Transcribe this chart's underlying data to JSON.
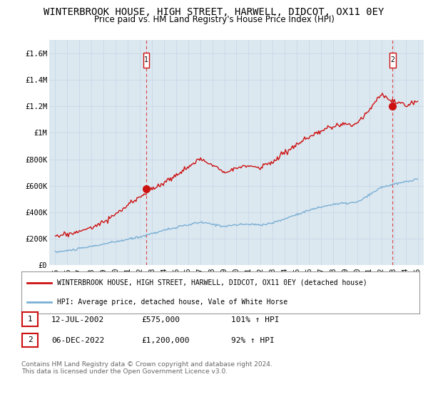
{
  "title": "WINTERBROOK HOUSE, HIGH STREET, HARWELL, DIDCOT, OX11 0EY",
  "subtitle": "Price paid vs. HM Land Registry's House Price Index (HPI)",
  "title_fontsize": 10,
  "subtitle_fontsize": 8.5,
  "ylim": [
    0,
    1700000
  ],
  "xlim_start": 1994.5,
  "xlim_end": 2025.5,
  "yticks": [
    0,
    200000,
    400000,
    600000,
    800000,
    1000000,
    1200000,
    1400000,
    1600000
  ],
  "ytick_labels": [
    "£0",
    "£200K",
    "£400K",
    "£600K",
    "£800K",
    "£1M",
    "£1.2M",
    "£1.4M",
    "£1.6M"
  ],
  "xticks": [
    1995,
    1996,
    1997,
    1998,
    1999,
    2000,
    2001,
    2002,
    2003,
    2004,
    2005,
    2006,
    2007,
    2008,
    2009,
    2010,
    2011,
    2012,
    2013,
    2014,
    2015,
    2016,
    2017,
    2018,
    2019,
    2020,
    2021,
    2022,
    2023,
    2024,
    2025
  ],
  "hpi_color": "#7aafd4",
  "price_color": "#cc1111",
  "dashed_color": "#dd4444",
  "grid_color": "#c8d8e8",
  "bg_plot_color": "#dce8f0",
  "sale1_x": 2002.54,
  "sale1_y": 575000,
  "sale2_x": 2022.92,
  "sale2_y": 1200000,
  "legend_label_red": "WINTERBROOK HOUSE, HIGH STREET, HARWELL, DIDCOT, OX11 0EY (detached house)",
  "legend_label_blue": "HPI: Average price, detached house, Vale of White Horse",
  "table_row1": [
    "1",
    "12-JUL-2002",
    "£575,000",
    "101% ↑ HPI"
  ],
  "table_row2": [
    "2",
    "06-DEC-2022",
    "£1,200,000",
    "92% ↑ HPI"
  ],
  "footnote": "Contains HM Land Registry data © Crown copyright and database right 2024.\nThis data is licensed under the Open Government Licence v3.0.",
  "bg_color": "#ffffff",
  "hpi_base": [
    100000,
    110000,
    125000,
    143000,
    160000,
    178000,
    195000,
    215000,
    240000,
    265000,
    285000,
    305000,
    325000,
    310000,
    295000,
    305000,
    310000,
    305000,
    320000,
    350000,
    385000,
    415000,
    440000,
    460000,
    468000,
    475000,
    530000,
    590000,
    610000,
    630000,
    650000
  ],
  "red_base": [
    220000,
    235000,
    255000,
    285000,
    330000,
    385000,
    450000,
    520000,
    575000,
    620000,
    680000,
    740000,
    800000,
    760000,
    710000,
    730000,
    750000,
    740000,
    780000,
    850000,
    910000,
    960000,
    1010000,
    1050000,
    1060000,
    1070000,
    1180000,
    1290000,
    1230000,
    1210000,
    1240000
  ]
}
